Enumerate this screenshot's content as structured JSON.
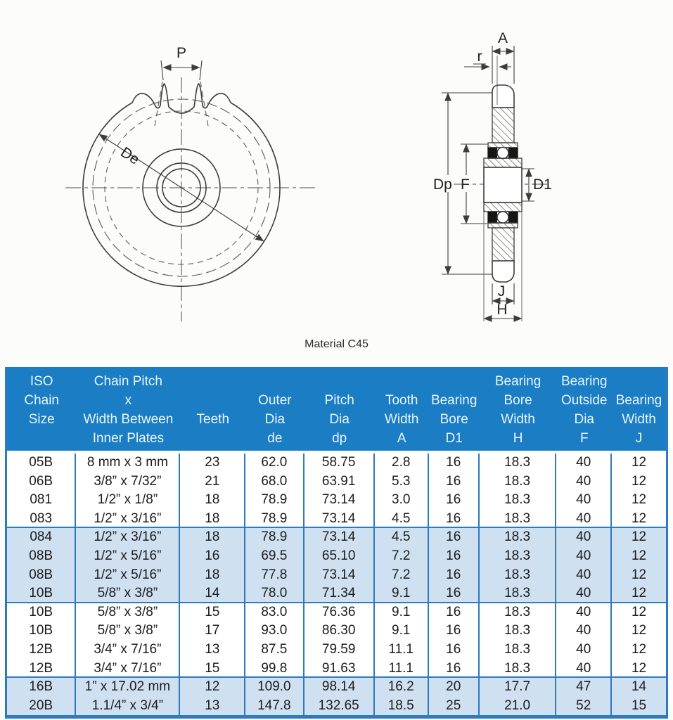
{
  "diagram": {
    "caption": "Material C45",
    "front_view": {
      "pitch_label": "P",
      "outer_dia_label": "De"
    },
    "side_view": {
      "tooth_width_label": "A",
      "radius_label": "r",
      "pitch_dia_label": "Dp",
      "bearing_outside_dia_label": "F",
      "bearing_bore_label": "D1",
      "bearing_width_label": "J",
      "bearing_bore_width_label": "H"
    }
  },
  "table": {
    "colors": {
      "header_bg": "#1b7ec5",
      "shaded_band": "#cfe0f1",
      "grid_lines": "#2d7abf"
    },
    "columns": [
      {
        "lines": [
          "ISO",
          "Chain",
          "Size"
        ],
        "align": "top"
      },
      {
        "lines": [
          "Chain Pitch",
          "x",
          "Width Between",
          "Inner Plates"
        ],
        "align": "top"
      },
      {
        "lines": [
          "Teeth"
        ],
        "align": "mid"
      },
      {
        "lines": [
          "Outer",
          "Dia",
          "de"
        ],
        "align": "low"
      },
      {
        "lines": [
          "Pitch",
          "Dia",
          "dp"
        ],
        "align": "low"
      },
      {
        "lines": [
          "Tooth",
          "Width",
          "A"
        ],
        "align": "low"
      },
      {
        "lines": [
          "Bearing",
          "Bore",
          "D1"
        ],
        "align": "low"
      },
      {
        "lines": [
          "Bearing",
          "Bore",
          "Width",
          "H"
        ],
        "align": "top"
      },
      {
        "lines": [
          "Bearing",
          "Outside",
          "Dia",
          "F"
        ],
        "align": "top"
      },
      {
        "lines": [
          "Bearing",
          "Width",
          "J"
        ],
        "align": "low"
      }
    ],
    "rows": [
      [
        "05B",
        "8 mm x 3 mm",
        "23",
        "62.0",
        "58.75",
        "2.8",
        "16",
        "18.3",
        "40",
        "12"
      ],
      [
        "06B",
        "3/8” x 7/32”",
        "21",
        "68.0",
        "63.91",
        "5.3",
        "16",
        "18.3",
        "40",
        "12"
      ],
      [
        "081",
        "1/2” x 1/8”",
        "18",
        "78.9",
        "73.14",
        "3.0",
        "16",
        "18.3",
        "40",
        "12"
      ],
      [
        "083",
        "1/2” x 3/16”",
        "18",
        "78.9",
        "73.14",
        "4.5",
        "16",
        "18.3",
        "40",
        "12"
      ],
      [
        "084",
        "1/2” x 3/16”",
        "18",
        "78.9",
        "73.14",
        "4.5",
        "16",
        "18.3",
        "40",
        "12"
      ],
      [
        "08B",
        "1/2” x 5/16”",
        "16",
        "69.5",
        "65.10",
        "7.2",
        "16",
        "18.3",
        "40",
        "12"
      ],
      [
        "08B",
        "1/2” x 5/16”",
        "18",
        "77.8",
        "73.14",
        "7.2",
        "16",
        "18.3",
        "40",
        "12"
      ],
      [
        "10B",
        "5/8” x 3/8”",
        "14",
        "78.0",
        "71.34",
        "9.1",
        "16",
        "18.3",
        "40",
        "12"
      ],
      [
        "10B",
        "5/8” x 3/8”",
        "15",
        "83.0",
        "76.36",
        "9.1",
        "16",
        "18.3",
        "40",
        "12"
      ],
      [
        "10B",
        "5/8” x 3/8”",
        "17",
        "93.0",
        "86.30",
        "9.1",
        "16",
        "18.3",
        "40",
        "12"
      ],
      [
        "12B",
        "3/4” x 7/16”",
        "13",
        "87.5",
        "79.59",
        "11.1",
        "16",
        "18.3",
        "40",
        "12"
      ],
      [
        "12B",
        "3/4” x 7/16”",
        "15",
        "99.8",
        "91.63",
        "11.1",
        "16",
        "18.3",
        "40",
        "12"
      ],
      [
        "16B",
        "1” x 17.02 mm",
        "12",
        "109.0",
        "98.14",
        "16.2",
        "20",
        "17.7",
        "47",
        "14"
      ],
      [
        "20B",
        "1.1/4” x 3/4”",
        "13",
        "147.8",
        "132.65",
        "18.5",
        "25",
        "21.0",
        "52",
        "15"
      ]
    ],
    "shaded_row_indices": [
      4,
      5,
      6,
      7,
      12,
      13
    ],
    "rule_row_indices": [
      4,
      8,
      12
    ]
  }
}
